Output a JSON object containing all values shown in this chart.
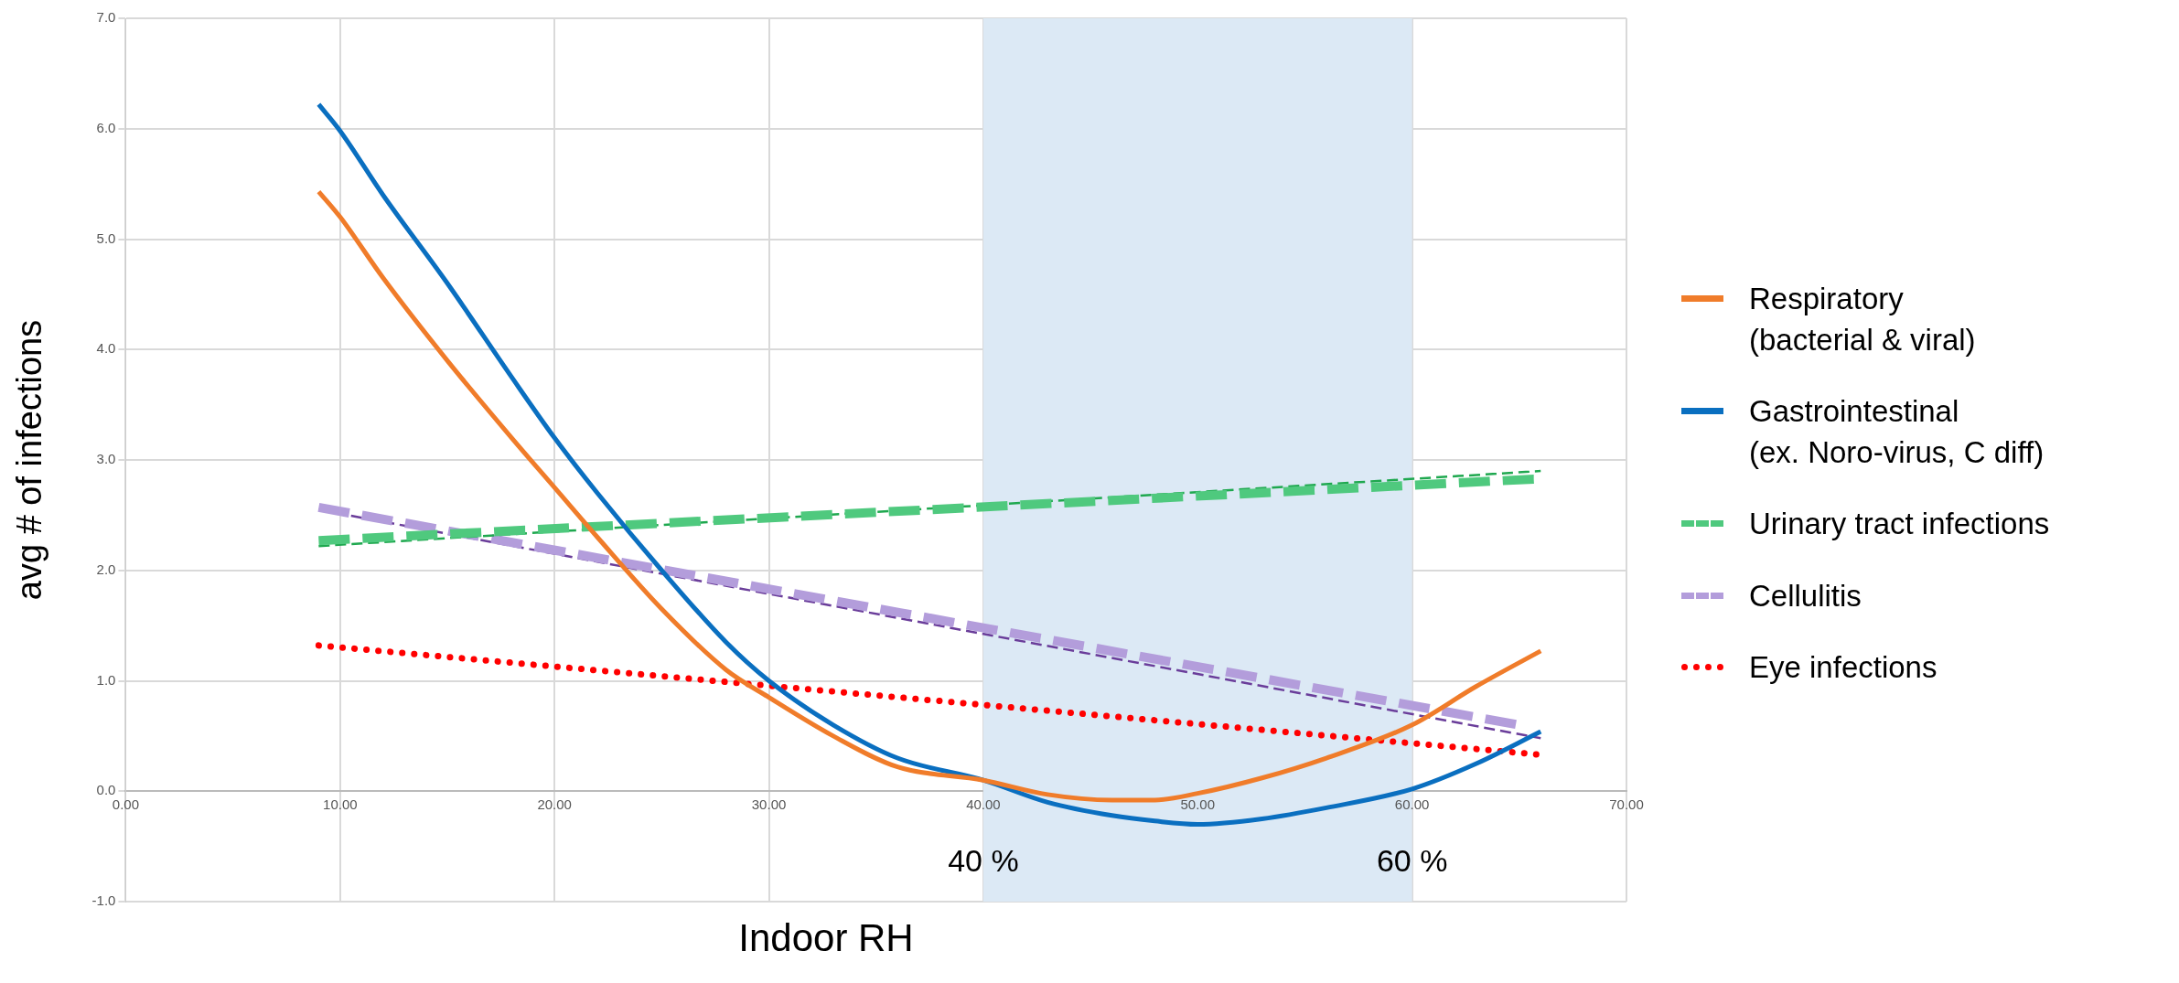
{
  "chart_data": {
    "type": "line",
    "xlabel": "Indoor RH",
    "ylabel": "avg # of infections",
    "xlim": [
      0,
      70
    ],
    "ylim": [
      -1,
      7
    ],
    "xticks": [
      {
        "value": 0,
        "label": "0.00"
      },
      {
        "value": 10,
        "label": "10.00"
      },
      {
        "value": 20,
        "label": "20.00"
      },
      {
        "value": 30,
        "label": "30.00"
      },
      {
        "value": 40,
        "label": "40.00"
      },
      {
        "value": 50,
        "label": "50.00"
      },
      {
        "value": 60,
        "label": "60.00"
      },
      {
        "value": 70,
        "label": "70.00"
      }
    ],
    "yticks": [
      {
        "value": -1,
        "label": "-1.0"
      },
      {
        "value": 0,
        "label": "0.0"
      },
      {
        "value": 1,
        "label": "1.0"
      },
      {
        "value": 2,
        "label": "2.0"
      },
      {
        "value": 3,
        "label": "3.0"
      },
      {
        "value": 4,
        "label": "4.0"
      },
      {
        "value": 5,
        "label": "5.0"
      },
      {
        "value": 6,
        "label": "6.0"
      },
      {
        "value": 7,
        "label": "7.0"
      }
    ],
    "grid": true,
    "legend": "right",
    "bands": [
      {
        "axis": "x",
        "from": 40,
        "to": 60,
        "color": "#dce9f5"
      }
    ],
    "annotations": [
      {
        "text": "40 %",
        "x": 40,
        "y": -0.65
      },
      {
        "text": "60 %",
        "x": 60,
        "y": -0.65
      }
    ],
    "series": [
      {
        "name": "Respiratory\n(bacterial & viral)",
        "color": "#f07c2a",
        "line_style": "solid",
        "x": [
          9,
          10,
          12,
          15,
          18,
          20,
          22,
          25,
          28,
          30,
          33,
          36,
          40,
          43,
          46,
          48,
          50,
          53,
          56,
          60,
          63,
          66
        ],
        "values": [
          5.43,
          5.2,
          4.65,
          3.9,
          3.2,
          2.75,
          2.3,
          1.65,
          1.1,
          0.85,
          0.5,
          0.22,
          0.1,
          -0.03,
          -0.08,
          -0.08,
          -0.02,
          0.12,
          0.3,
          0.6,
          0.95,
          1.27
        ]
      },
      {
        "name": "Gastrointestinal\n(ex. Noro-virus, C diff)",
        "color": "#0a6fc0",
        "line_style": "solid",
        "x": [
          9,
          10,
          12,
          15,
          18,
          20,
          22,
          25,
          28,
          30,
          33,
          36,
          40,
          43,
          46,
          48,
          50,
          53,
          56,
          60,
          63,
          66
        ],
        "values": [
          6.22,
          5.98,
          5.4,
          4.6,
          3.75,
          3.2,
          2.7,
          2.0,
          1.35,
          1.0,
          0.6,
          0.3,
          0.1,
          -0.1,
          -0.22,
          -0.27,
          -0.3,
          -0.25,
          -0.15,
          0.02,
          0.25,
          0.54
        ]
      },
      {
        "name": "Urinary tract infections",
        "color": "#4fc97e",
        "line_style": "dashed",
        "x": [
          9,
          66
        ],
        "values": [
          2.27,
          2.83
        ]
      },
      {
        "color": "#1fa84f",
        "line_style": "dashed",
        "x": [
          9,
          66
        ],
        "values": [
          2.22,
          2.9
        ]
      },
      {
        "name": "Cellulitis",
        "color": "#b39ddb",
        "line_style": "dashed",
        "x": [
          9,
          65
        ],
        "values": [
          2.57,
          0.6
        ]
      },
      {
        "color": "#6a3d9a",
        "line_style": "dashed",
        "x": [
          9,
          66
        ],
        "values": [
          2.55,
          0.48
        ]
      },
      {
        "name": "Eye infections",
        "color": "#ff0000",
        "line_style": "dotted",
        "x": [
          9,
          66
        ],
        "values": [
          1.32,
          0.33
        ]
      }
    ]
  }
}
